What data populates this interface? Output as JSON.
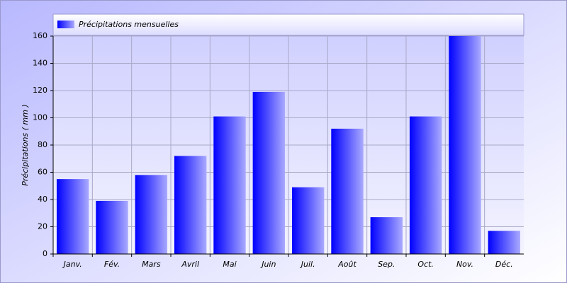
{
  "chart_data": {
    "type": "bar",
    "y_label": "Précipitations ( mm )",
    "categories": [
      "Janv.",
      "Fév.",
      "Mars",
      "Avril",
      "Mai",
      "Juin",
      "Juil.",
      "Août",
      "Sep.",
      "Oct.",
      "Nov.",
      "Déc."
    ],
    "series": [
      {
        "name": "Précipitations mensuelles",
        "color": "#0000ff",
        "values": [
          55,
          39,
          58,
          72,
          101,
          119,
          49,
          92,
          27,
          101,
          160,
          17
        ]
      }
    ],
    "ylim": [
      0,
      160
    ],
    "yticks": [
      0,
      20,
      40,
      60,
      80,
      100,
      120,
      140,
      160
    ],
    "grid": true
  }
}
